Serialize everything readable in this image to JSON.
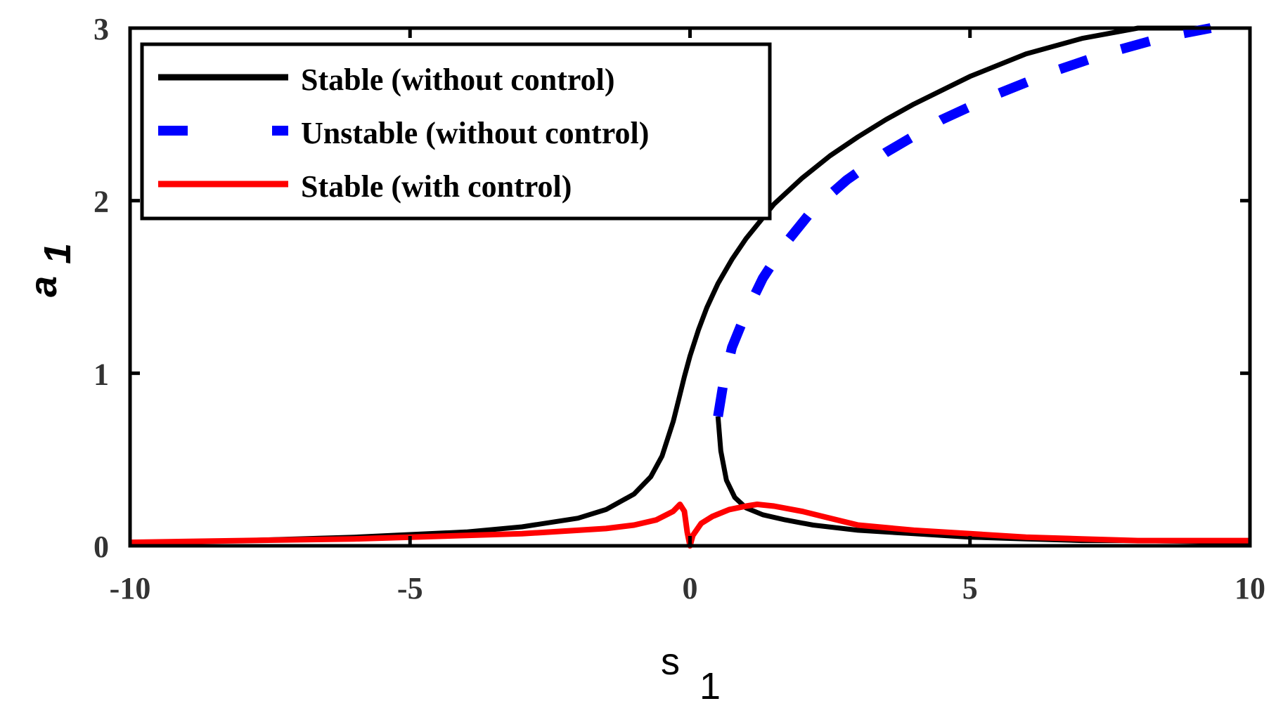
{
  "chart_data": {
    "type": "line",
    "xlabel": "s",
    "xlabel_subscript": "1",
    "ylabel": "a",
    "ylabel_subscript": "1",
    "xlim": [
      -10,
      10
    ],
    "ylim": [
      0,
      3
    ],
    "xticks": [
      -10,
      -5,
      0,
      5,
      10
    ],
    "xtick_labels": [
      "-10",
      "-5",
      "0",
      "5",
      "10"
    ],
    "yticks": [
      0,
      1,
      2,
      3
    ],
    "ytick_labels": [
      "0",
      "1",
      "2",
      "3"
    ],
    "grid": false,
    "legend_position": "top-left",
    "series": [
      {
        "name": "Stable (without control)",
        "color": "#000000",
        "style": "solid",
        "x": [
          -10,
          -8,
          -6,
          -4,
          -3,
          -2,
          -1.5,
          -1,
          -0.7,
          -0.5,
          -0.3,
          -0.2,
          -0.1,
          0,
          0.15,
          0.3,
          0.5,
          0.75,
          1,
          1.5,
          2,
          2.5,
          3,
          3.5,
          4,
          5,
          6,
          7,
          8,
          9.3
        ],
        "y": [
          0.02,
          0.03,
          0.05,
          0.08,
          0.11,
          0.16,
          0.21,
          0.3,
          0.4,
          0.52,
          0.72,
          0.85,
          0.98,
          1.1,
          1.25,
          1.38,
          1.52,
          1.66,
          1.78,
          1.98,
          2.13,
          2.26,
          2.37,
          2.47,
          2.56,
          2.72,
          2.85,
          2.94,
          3.0,
          3.0
        ]
      },
      {
        "name": "Unstable (without control)",
        "color": "#0000ff",
        "style": "dashed",
        "x": [
          0.5,
          0.6,
          0.75,
          1,
          1.3,
          1.7,
          2.2,
          2.8,
          3.5,
          4.5,
          5.5,
          6.5,
          7.5,
          8.5,
          9.3
        ],
        "y": [
          0.75,
          0.95,
          1.15,
          1.35,
          1.55,
          1.75,
          1.95,
          2.12,
          2.28,
          2.47,
          2.62,
          2.75,
          2.86,
          2.95,
          3.0
        ]
      },
      {
        "name": "",
        "color": "#000000",
        "style": "solid",
        "x": [
          0.5,
          0.55,
          0.65,
          0.8,
          1,
          1.3,
          1.7,
          2.2,
          3,
          4,
          5,
          6,
          7,
          8,
          10
        ],
        "y": [
          0.75,
          0.55,
          0.38,
          0.28,
          0.22,
          0.18,
          0.15,
          0.12,
          0.09,
          0.07,
          0.05,
          0.04,
          0.03,
          0.03,
          0.02
        ]
      },
      {
        "name": "Stable (with control)",
        "color": "#ff0000",
        "style": "solid",
        "x": [
          -10,
          -8,
          -6,
          -4,
          -3,
          -2,
          -1.5,
          -1,
          -0.6,
          -0.3,
          -0.18,
          -0.1,
          -0.05,
          0,
          0.05,
          0.2,
          0.4,
          0.7,
          1,
          1.2,
          1.5,
          2,
          2.5,
          3,
          4,
          5,
          6,
          7,
          8,
          10
        ],
        "y": [
          0.02,
          0.03,
          0.04,
          0.06,
          0.07,
          0.09,
          0.1,
          0.12,
          0.15,
          0.2,
          0.24,
          0.2,
          0.08,
          0.0,
          0.06,
          0.13,
          0.17,
          0.21,
          0.23,
          0.24,
          0.23,
          0.2,
          0.16,
          0.12,
          0.09,
          0.07,
          0.05,
          0.04,
          0.03,
          0.03
        ]
      }
    ]
  }
}
